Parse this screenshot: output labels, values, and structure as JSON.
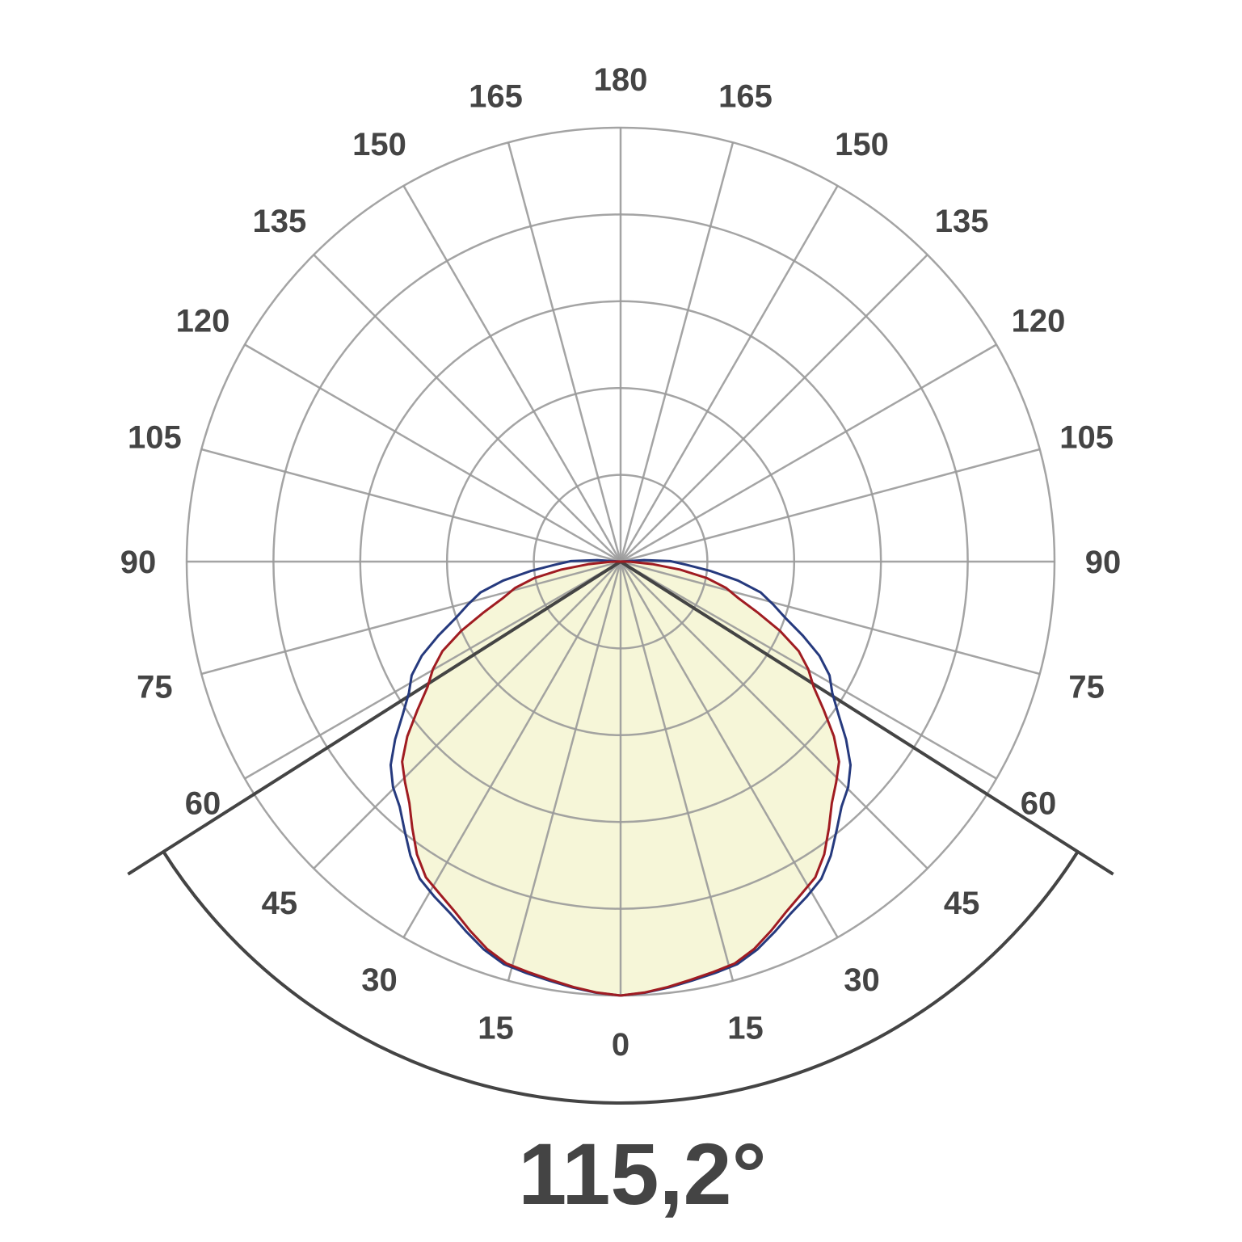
{
  "chart_data": {
    "type": "polar",
    "angle_tick_labels": [
      "0",
      "15",
      "30",
      "45",
      "60",
      "75",
      "90",
      "105",
      "120",
      "135",
      "150",
      "165",
      "180"
    ],
    "angle_step_deg": 15,
    "radial_rings": 5,
    "radial_range": [
      0,
      1
    ],
    "grid": true,
    "series": [
      {
        "color": "#a01c22",
        "filled": true,
        "fill_color": "#f6f6d8",
        "angles": [
          0,
          15,
          30,
          45,
          60,
          75,
          90,
          95
        ],
        "values": [
          1.0,
          0.966,
          0.866,
          0.707,
          0.5,
          0.26,
          0.01,
          0.0
        ]
      },
      {
        "color": "#263a7e",
        "filled": false,
        "angles": [
          0,
          15,
          30,
          45,
          60,
          75,
          90,
          97
        ],
        "values": [
          1.0,
          0.97,
          0.88,
          0.74,
          0.56,
          0.36,
          0.12,
          0.0
        ]
      }
    ],
    "beam_angle_deg": 115.2,
    "beam_angle_label": "115,2°"
  },
  "colors": {
    "grid": "#9a9a9a",
    "label": "#444444",
    "beam": "#444444"
  }
}
